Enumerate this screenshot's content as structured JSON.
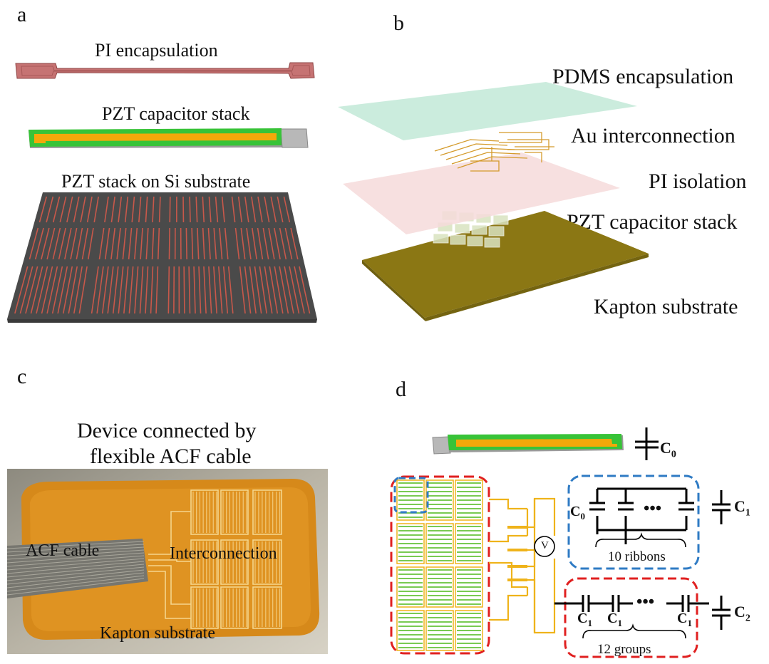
{
  "panels": {
    "a": {
      "letter": "a",
      "labels": [
        "PI encapsulation",
        "PZT capacitor stack",
        "PZT stack on Si substrate"
      ]
    },
    "b": {
      "letter": "b",
      "layers": [
        "PDMS encapsulation",
        "Au interconnection",
        "PI isolation",
        "PZT capacitor stack",
        "Kapton substrate"
      ]
    },
    "c": {
      "letter": "c",
      "title_line1": "Device connected by",
      "title_line2": "flexible ACF cable",
      "photo_labels": [
        "ACF cable",
        "Interconnection",
        "Kapton substrate"
      ]
    },
    "d": {
      "letter": "d",
      "c0": "C",
      "c0_sub": "0",
      "c1": "C",
      "c1_sub": "1",
      "c2": "C",
      "c2_sub": "2",
      "meter": "V",
      "ribbons": "10 ribbons",
      "groups": "12 groups",
      "ellipsis": "•••"
    }
  },
  "colors": {
    "pi": "#c46a6a",
    "pzt_green": "#3cc83c",
    "pzt_orange": "#f2a900",
    "si": "#555555",
    "pdms": "#c9ecdf",
    "pi_iso": "#f6dcdc",
    "kapton_layer": "#8a7716",
    "kapton_photo": "#d98a1a",
    "red_dash": "#e02020",
    "blue_dash": "#2f7bc4"
  }
}
